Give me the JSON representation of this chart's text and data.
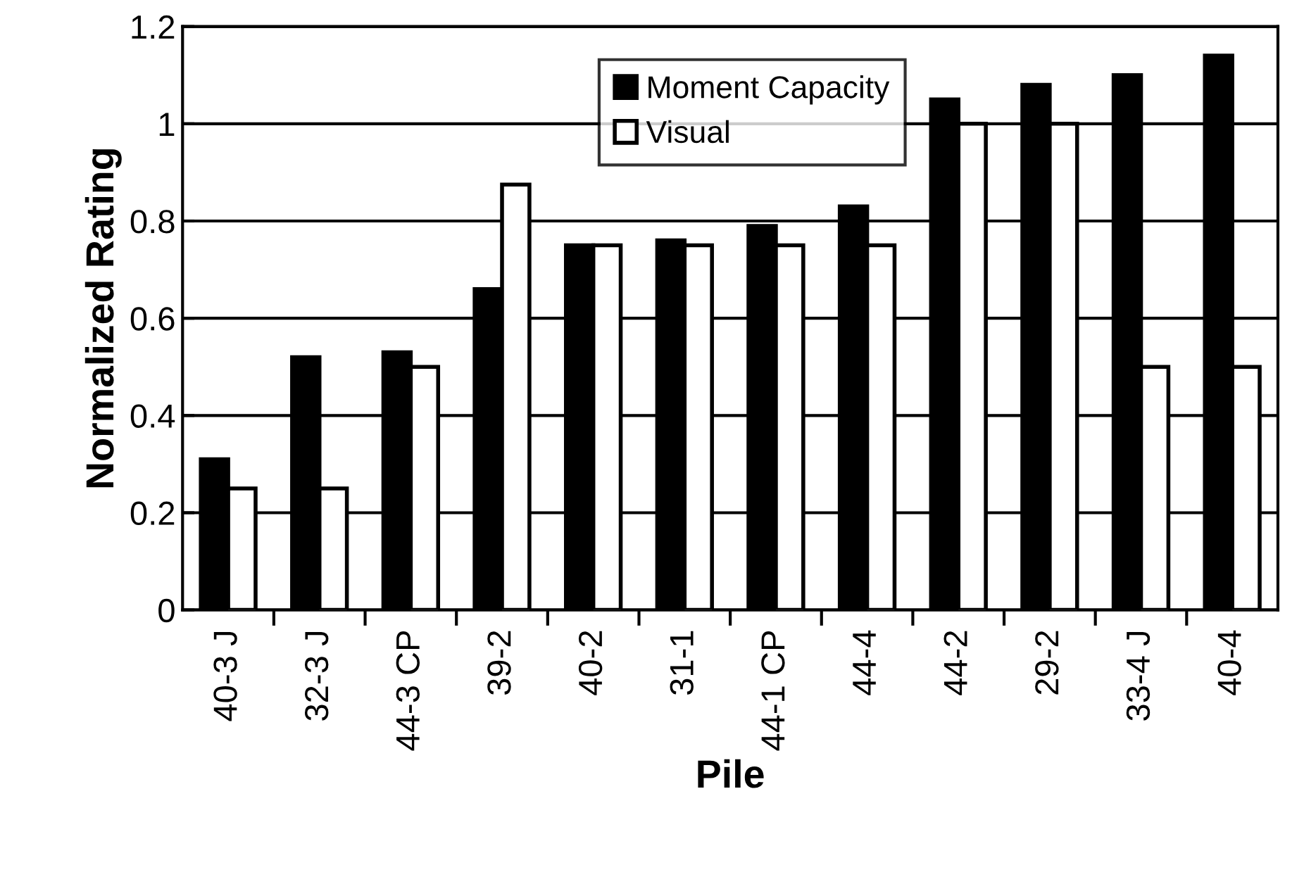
{
  "chart_data": {
    "type": "bar",
    "xlabel": "Pile",
    "ylabel": "Normalized Rating",
    "categories": [
      "40-3 J",
      "32-3 J",
      "44-3 CP",
      "39-2",
      "40-2",
      "31-1",
      "44-1 CP",
      "44-4",
      "44-2",
      "29-2",
      "33-4 J",
      "40-4"
    ],
    "series": [
      {
        "name": "Moment Capacity",
        "color": "#000000",
        "values": [
          0.31,
          0.52,
          0.53,
          0.66,
          0.75,
          0.76,
          0.79,
          0.83,
          1.05,
          1.08,
          1.1,
          1.14
        ]
      },
      {
        "name": "Visual",
        "color": "#ffffff",
        "values": [
          0.25,
          0.25,
          0.5,
          0.875,
          0.75,
          0.75,
          0.75,
          0.75,
          1.0,
          1.0,
          0.5,
          0.5
        ]
      }
    ],
    "ylim": [
      0,
      1.2
    ],
    "yticks": [
      0,
      0.2,
      0.4,
      0.6,
      0.8,
      1,
      1.2
    ],
    "grid": "y",
    "legend": "top center"
  }
}
